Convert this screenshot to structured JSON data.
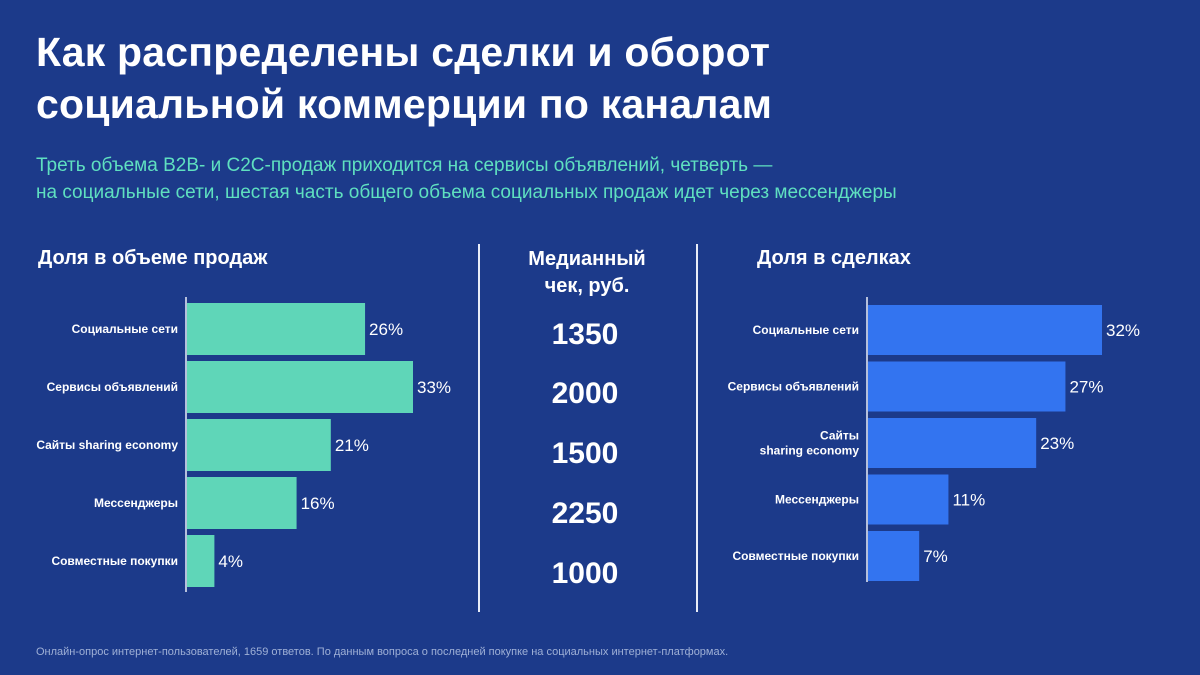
{
  "header": {
    "title_line1": "Как распределены сделки и оборот",
    "title_line2": "социальной коммерции по каналам",
    "subtitle_line1": "Треть объема B2B- и C2C-продаж приходится на сервисы объявлений, четверть —",
    "subtitle_line2": "на социальные сети, шестая часть общего объема социальных продаж идет через мессенджеры"
  },
  "median": {
    "heading_line1": "Медианный",
    "heading_line2": "чек, руб.",
    "values": [
      "1350",
      "2000",
      "1500",
      "2250",
      "1000"
    ]
  },
  "footnote": "Онлайн-опрос интернет-пользователей, 1659 ответов. По данным вопроса о последней покупке на социальных интернет-платформах.",
  "colors": {
    "background": "#1c3a8a",
    "green": "#5fd6b8",
    "blue": "#3374f0",
    "accent_text": "#5fe0c0"
  },
  "chart_data": [
    {
      "type": "bar",
      "orientation": "horizontal",
      "title": "Доля в объеме продаж",
      "categories": [
        [
          "Социальные  сети"
        ],
        [
          "Сервисы  объявлений"
        ],
        [
          "Сайты sharing  economy"
        ],
        [
          "Мессенджеры"
        ],
        [
          "Совместные  покупки"
        ]
      ],
      "values": [
        26,
        33,
        21,
        16,
        4
      ],
      "value_labels": [
        "26%",
        "33%",
        "21%",
        "16%",
        "4%"
      ],
      "unit": "%",
      "xlim": [
        0,
        33
      ],
      "color": "#5fd6b8"
    },
    {
      "type": "bar",
      "orientation": "horizontal",
      "title": "Доля в сделках",
      "categories": [
        [
          "Социальные  сети"
        ],
        [
          "Сервисы  объявлений"
        ],
        [
          "Сайты",
          "sharing  economy"
        ],
        [
          "Мессенджеры"
        ],
        [
          "Совместные  покупки"
        ]
      ],
      "values": [
        32,
        27,
        23,
        11,
        7
      ],
      "value_labels": [
        "32%",
        "27%",
        "23%",
        "11%",
        "7%"
      ],
      "unit": "%",
      "xlim": [
        0,
        32
      ],
      "color": "#3374f0"
    }
  ]
}
